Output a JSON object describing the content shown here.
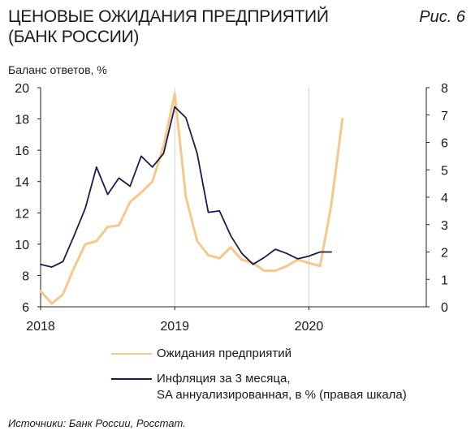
{
  "header": {
    "title": "ЦЕНОВЫЕ ОЖИДАНИЯ ПРЕДПРИЯТИЙ\n(БАНК РОССИИ)",
    "figure_label": "Рис. 6"
  },
  "footer": {
    "source": "Источники: Банк России, Росстат."
  },
  "chart_data": {
    "type": "line",
    "ylabel": "Баланс ответов, %",
    "x_ticks": [
      "2018",
      "2019",
      "2020"
    ],
    "x_tick_values": [
      2018,
      2019,
      2020
    ],
    "xlim": [
      2018,
      2020.875
    ],
    "ylim_left": [
      6,
      20
    ],
    "y_ticks_left": [
      6,
      8,
      10,
      12,
      14,
      16,
      18,
      20
    ],
    "ylim_right": [
      0,
      8
    ],
    "y_ticks_right": [
      0,
      1,
      2,
      3,
      4,
      5,
      6,
      7,
      8
    ],
    "grid": "vertical at year starts",
    "colors": {
      "left_series": "#f5c98a",
      "right_series": "#1f1a4d",
      "axis": "#222222",
      "grid": "#d0d0d0"
    },
    "series": [
      {
        "name": "Ожидания предприятий",
        "axis": "left",
        "x": [
          2018.0,
          2018.0833,
          2018.1667,
          2018.25,
          2018.3333,
          2018.4167,
          2018.5,
          2018.5833,
          2018.6667,
          2018.75,
          2018.8333,
          2018.9167,
          2019.0,
          2019.0833,
          2019.1667,
          2019.25,
          2019.3333,
          2019.4167,
          2019.5,
          2019.5833,
          2019.6667,
          2019.75,
          2019.8333,
          2019.9167,
          2020.0,
          2020.0833,
          2020.1667,
          2020.25
        ],
        "values": [
          7.0,
          6.2,
          6.8,
          8.5,
          10.0,
          10.2,
          11.1,
          11.2,
          12.7,
          13.3,
          14.0,
          16.3,
          19.6,
          13.0,
          10.2,
          9.3,
          9.1,
          9.8,
          9.0,
          8.8,
          8.3,
          8.3,
          8.6,
          9.0,
          8.8,
          8.6,
          12.5,
          18.0
        ]
      },
      {
        "name": "Инфляция за 3 месяца,\nSA аннуализированная, в % (правая шкала)",
        "axis": "right",
        "x": [
          2018.0,
          2018.0833,
          2018.1667,
          2018.25,
          2018.3333,
          2018.4167,
          2018.5,
          2018.5833,
          2018.6667,
          2018.75,
          2018.8333,
          2018.9167,
          2019.0,
          2019.0833,
          2019.1667,
          2019.25,
          2019.3333,
          2019.4167,
          2019.5,
          2019.5833,
          2019.6667,
          2019.75,
          2019.8333,
          2019.9167,
          2020.0,
          2020.0833,
          2020.1667
        ],
        "values": [
          1.55,
          1.45,
          1.65,
          2.6,
          3.6,
          5.1,
          4.1,
          4.7,
          4.4,
          5.5,
          5.1,
          5.6,
          7.3,
          6.9,
          5.6,
          3.45,
          3.5,
          2.6,
          1.95,
          1.55,
          1.8,
          2.1,
          1.95,
          1.75,
          1.85,
          2.0,
          2.0
        ]
      }
    ]
  }
}
